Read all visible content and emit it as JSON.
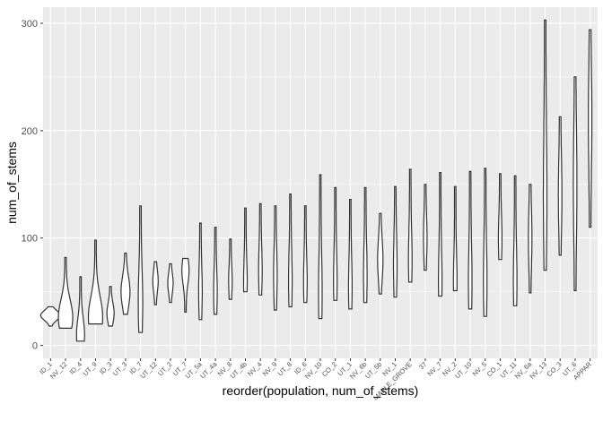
{
  "chart_data": {
    "type": "violin",
    "title": "",
    "xlabel": "reorder(population, num_of_stems)",
    "ylabel": "num_of_stems",
    "ylim": [
      -12,
      315
    ],
    "yticks": [
      0,
      100,
      200,
      300
    ],
    "grid": true,
    "legend": "none",
    "categories": [
      "ID_1",
      "NV_12",
      "ID_4",
      "UT_9",
      "ID_3",
      "UT_3",
      "ID_7",
      "UT_12",
      "UT_2",
      "UT_7",
      "UT_5a",
      "UT_4a",
      "NV_8",
      "UT_4b",
      "NV_4",
      "NV_9",
      "UT_8",
      "ID_6",
      "NV_10",
      "CO_2",
      "UT_1",
      "NV_6b",
      "UT_5b",
      "NV_1",
      "MAPLE_GROVE",
      "37",
      "NV_7",
      "NV_2",
      "UT_10",
      "NV_5",
      "CO_1",
      "UT_11",
      "NV_6a",
      "NV_13",
      "CO_3",
      "UT_6",
      "APPAR"
    ],
    "series": [
      {
        "ranges": [
          [
            18,
            36
          ],
          [
            16,
            82
          ],
          [
            4,
            64
          ],
          [
            20,
            98
          ],
          [
            18,
            55
          ],
          [
            29,
            86
          ],
          [
            12,
            130
          ],
          [
            38,
            78
          ],
          [
            40,
            76
          ],
          [
            31,
            81
          ],
          [
            24,
            114
          ],
          [
            29,
            110
          ],
          [
            43,
            99
          ],
          [
            50,
            128
          ],
          [
            47,
            132
          ],
          [
            33,
            130
          ],
          [
            36,
            141
          ],
          [
            40,
            130
          ],
          [
            25,
            159
          ],
          [
            42,
            147
          ],
          [
            34,
            136
          ],
          [
            40,
            147
          ],
          [
            48,
            123
          ],
          [
            45,
            148
          ],
          [
            59,
            164
          ],
          [
            70,
            150
          ],
          [
            46,
            161
          ],
          [
            51,
            148
          ],
          [
            34,
            162
          ],
          [
            27,
            165
          ],
          [
            80,
            160
          ],
          [
            37,
            158
          ],
          [
            49,
            150
          ],
          [
            70,
            303
          ],
          [
            84,
            213
          ],
          [
            51,
            250
          ],
          [
            110,
            294
          ]
        ],
        "peaks": [
          28,
          26,
          10,
          26,
          30,
          50,
          40,
          60,
          58,
          70,
          50,
          50,
          60,
          60,
          70,
          65,
          60,
          60,
          50,
          60,
          55,
          65,
          80,
          75,
          80,
          100,
          60,
          60,
          60,
          60,
          100,
          60,
          100,
          140,
          140,
          150,
          210
        ],
        "widths": [
          11,
          8,
          4.5,
          8,
          4,
          5,
          2.5,
          3,
          3,
          4,
          2,
          2,
          2,
          2,
          2,
          2,
          2,
          2,
          2,
          2,
          2,
          2,
          3,
          2,
          2,
          2,
          2,
          2,
          2,
          2,
          2,
          2,
          2,
          2,
          2,
          2,
          2
        ]
      }
    ]
  },
  "colors": {
    "panel_bg": "#ebebeb",
    "grid_major": "#ffffff",
    "violin_stroke": "#333333",
    "violin_fill": "#ffffff"
  }
}
